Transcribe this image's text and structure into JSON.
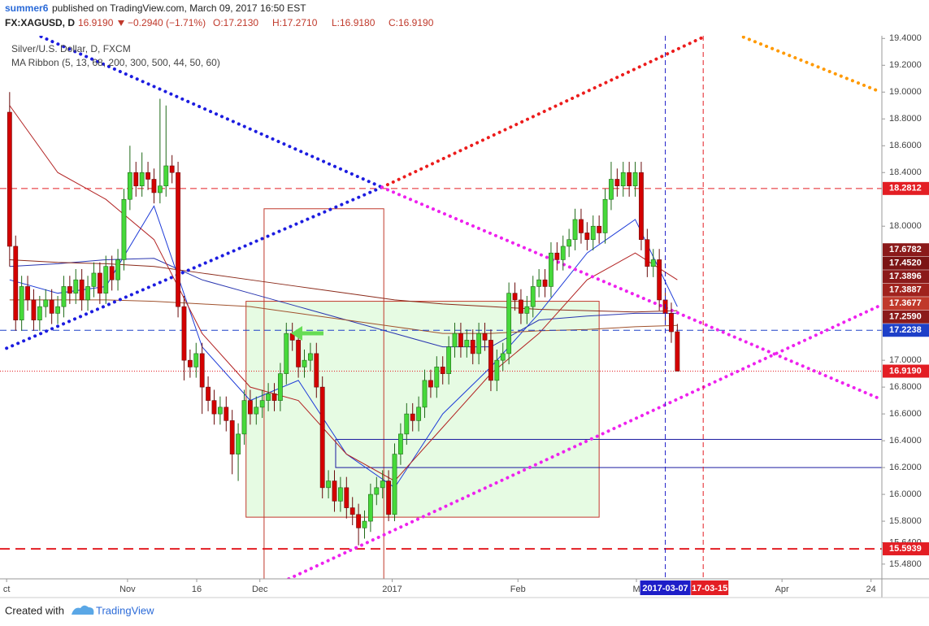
{
  "header": {
    "author": "summer6",
    "published": "published on TradingView.com, March 09, 2017 16:50 EST",
    "symbol": "FX:XAGUSD, D",
    "last": "16.9190",
    "change": "−0.2940 (−1.71%)",
    "open": "O:17.2130",
    "high": "H:17.2710",
    "low": "L:16.9180",
    "close": "C:16.9190"
  },
  "chart_data": {
    "type": "candlestick",
    "title": "Silver/U.S. Dollar, D, FXCM",
    "subtitle": "MA Ribbon (5, 13, 68, 200, 300, 500, 44, 50, 60)",
    "xlim": [
      -1.6,
      145
    ],
    "ylim": [
      15.37,
      19.42
    ],
    "xticks": [
      {
        "value": -0.5,
        "label": "ct"
      },
      {
        "value": 19.6,
        "label": "Nov"
      },
      {
        "value": 31.1,
        "label": "16"
      },
      {
        "value": 41.6,
        "label": "Dec"
      },
      {
        "value": 63.6,
        "label": "2017"
      },
      {
        "value": 84.5,
        "label": "Feb"
      },
      {
        "value": 104.2,
        "label": "M"
      },
      {
        "value": 128.4,
        "label": "Apr"
      },
      {
        "value": 143.2,
        "label": "24"
      }
    ],
    "yticks": [
      {
        "value": 19.4,
        "label": "19.4000"
      },
      {
        "value": 19.2,
        "label": "19.2000"
      },
      {
        "value": 19.0,
        "label": "19.0000"
      },
      {
        "value": 18.8,
        "label": "18.8000"
      },
      {
        "value": 18.6,
        "label": "18.6000"
      },
      {
        "value": 18.4,
        "label": "18.4000"
      },
      {
        "value": 18.0,
        "label": "18.0000"
      },
      {
        "value": 17.0,
        "label": "17.0000"
      },
      {
        "value": 16.8,
        "label": "16.8000"
      },
      {
        "value": 16.6,
        "label": "16.6000"
      },
      {
        "value": 16.4,
        "label": "16.4000"
      },
      {
        "value": 16.2,
        "label": "16.2000"
      },
      {
        "value": 16.0,
        "label": "16.0000"
      },
      {
        "value": 15.8,
        "label": "15.8000"
      },
      {
        "value": 15.64,
        "label": "15.6400"
      },
      {
        "value": 15.48,
        "label": "15.4800"
      }
    ],
    "up_color": "#46d93a",
    "down_color": "#d40000",
    "open": [
      18.85,
      17.85,
      17.3,
      17.55,
      17.45,
      17.3,
      17.4,
      17.45,
      17.35,
      17.4,
      17.55,
      17.5,
      17.6,
      17.45,
      17.55,
      17.65,
      17.5,
      17.7,
      17.6,
      17.75,
      18.2,
      18.4,
      18.3,
      18.4,
      18.35,
      18.25,
      18.3,
      18.45,
      18.4,
      17.4,
      17.0,
      16.95,
      17.05,
      16.8,
      16.7,
      16.6,
      16.65,
      16.55,
      16.3,
      16.45,
      16.7,
      16.6,
      16.65,
      16.7,
      16.75,
      16.7,
      16.9,
      17.2,
      17.15,
      16.95,
      17.0,
      17.05,
      16.8,
      16.05,
      16.1,
      15.95,
      16.05,
      15.9,
      15.85,
      15.75,
      15.8,
      16.0,
      16.05,
      16.1,
      15.85,
      16.3,
      16.45,
      16.6,
      16.55,
      16.65,
      16.85,
      16.8,
      16.95,
      16.9,
      17.1,
      17.2,
      17.1,
      17.15,
      17.05,
      17.2,
      17.15,
      16.85,
      17.0,
      17.05,
      17.5,
      17.45,
      17.35,
      17.4,
      17.55,
      17.6,
      17.55,
      17.8,
      17.75,
      17.85,
      17.9,
      18.05,
      17.95,
      17.9,
      18.0,
      17.95,
      18.2,
      18.35,
      18.3,
      18.4,
      18.3,
      18.4,
      17.9,
      17.7,
      17.75,
      17.45,
      17.35,
      17.213
    ],
    "high": [
      19.0,
      17.93,
      17.63,
      17.63,
      17.53,
      17.48,
      17.53,
      17.53,
      17.48,
      17.63,
      17.63,
      17.68,
      17.68,
      17.63,
      17.73,
      17.73,
      17.78,
      17.78,
      17.83,
      18.28,
      18.6,
      18.48,
      18.55,
      18.48,
      18.43,
      18.95,
      18.9,
      18.53,
      18.48,
      17.48,
      17.08,
      17.13,
      17.13,
      16.88,
      16.78,
      16.73,
      16.73,
      16.63,
      16.53,
      16.78,
      16.78,
      16.73,
      16.78,
      16.83,
      16.83,
      16.98,
      17.28,
      17.28,
      17.23,
      17.08,
      17.13,
      17.13,
      16.88,
      16.18,
      16.18,
      16.13,
      16.13,
      15.98,
      15.93,
      15.88,
      16.08,
      16.13,
      16.18,
      16.18,
      16.38,
      16.53,
      16.68,
      16.68,
      16.73,
      16.93,
      16.93,
      17.03,
      17.03,
      17.18,
      17.28,
      17.28,
      17.23,
      17.23,
      17.28,
      17.28,
      17.23,
      17.08,
      17.13,
      17.58,
      17.58,
      17.53,
      17.48,
      17.63,
      17.68,
      17.68,
      17.88,
      17.88,
      17.93,
      17.98,
      18.13,
      18.13,
      18.03,
      18.08,
      18.08,
      18.28,
      18.48,
      18.43,
      18.48,
      18.48,
      18.48,
      18.48,
      17.98,
      17.83,
      17.83,
      17.53,
      17.43,
      17.271
    ],
    "low": [
      17.7,
      17.22,
      17.22,
      17.37,
      17.22,
      17.22,
      17.32,
      17.27,
      17.27,
      17.32,
      17.42,
      17.42,
      17.37,
      17.37,
      17.47,
      17.42,
      17.42,
      17.52,
      17.52,
      17.67,
      18.12,
      18.22,
      18.22,
      18.27,
      18.17,
      18.17,
      18.22,
      18.32,
      17.32,
      16.85,
      16.87,
      16.87,
      16.6,
      16.62,
      16.52,
      16.52,
      16.47,
      16.15,
      16.1,
      16.37,
      16.52,
      16.52,
      16.57,
      16.62,
      16.62,
      16.62,
      16.82,
      17.07,
      16.87,
      16.87,
      16.92,
      16.72,
      15.97,
      15.97,
      15.87,
      15.87,
      15.82,
      15.77,
      15.62,
      15.67,
      15.72,
      15.92,
      15.97,
      15.8,
      15.8,
      16.22,
      16.37,
      16.47,
      16.47,
      16.57,
      16.72,
      16.72,
      16.82,
      16.82,
      17.02,
      17.02,
      17.02,
      16.97,
      16.97,
      17.07,
      16.77,
      16.77,
      16.92,
      16.97,
      17.37,
      17.27,
      17.27,
      17.32,
      17.47,
      17.47,
      17.47,
      17.67,
      17.67,
      17.77,
      17.82,
      17.87,
      17.82,
      17.82,
      17.87,
      17.87,
      18.12,
      18.22,
      18.22,
      18.22,
      18.22,
      17.82,
      17.62,
      17.62,
      17.37,
      17.27,
      17.13,
      16.918
    ],
    "close": [
      17.85,
      17.3,
      17.55,
      17.45,
      17.3,
      17.4,
      17.45,
      17.35,
      17.4,
      17.55,
      17.5,
      17.6,
      17.45,
      17.55,
      17.65,
      17.5,
      17.7,
      17.6,
      17.75,
      18.2,
      18.4,
      18.3,
      18.4,
      18.35,
      18.25,
      18.3,
      18.45,
      18.4,
      17.4,
      17.0,
      16.95,
      17.05,
      16.8,
      16.7,
      16.6,
      16.65,
      16.55,
      16.3,
      16.45,
      16.7,
      16.6,
      16.65,
      16.7,
      16.75,
      16.7,
      16.9,
      17.2,
      17.15,
      16.95,
      17.0,
      17.05,
      16.8,
      16.05,
      16.1,
      15.95,
      16.05,
      15.9,
      15.85,
      15.75,
      15.8,
      16.0,
      16.05,
      16.1,
      15.85,
      16.3,
      16.45,
      16.6,
      16.55,
      16.65,
      16.85,
      16.8,
      16.95,
      16.9,
      17.1,
      17.2,
      17.1,
      17.15,
      17.05,
      17.2,
      17.15,
      16.85,
      17.0,
      17.05,
      17.5,
      17.45,
      17.35,
      17.4,
      17.55,
      17.6,
      17.55,
      17.8,
      17.75,
      17.85,
      17.9,
      18.05,
      17.95,
      17.9,
      18.0,
      17.95,
      18.2,
      18.35,
      18.3,
      18.4,
      18.3,
      18.4,
      17.9,
      17.7,
      17.75,
      17.45,
      17.35,
      17.213,
      16.919
    ],
    "ma_x": [
      0,
      8,
      16,
      24,
      32,
      40,
      48,
      56,
      64,
      72,
      80,
      88,
      96,
      104,
      111
    ],
    "ma": [
      {
        "color": "#1e3cd8",
        "values": [
          17.6,
          17.5,
          17.55,
          18.15,
          17.1,
          16.7,
          16.85,
          16.3,
          16.05,
          16.6,
          16.95,
          17.35,
          17.8,
          18.05,
          17.4
        ]
      },
      {
        "color": "#2a36b0",
        "values": [
          17.7,
          17.72,
          17.75,
          17.76,
          17.6,
          17.5,
          17.4,
          17.3,
          17.2,
          17.1,
          17.1,
          17.3,
          17.33,
          17.35,
          17.35
        ]
      },
      {
        "color": "#b22222",
        "values": [
          18.9,
          18.4,
          18.2,
          17.9,
          17.2,
          16.8,
          16.7,
          16.3,
          16.1,
          16.5,
          16.9,
          17.2,
          17.6,
          17.8,
          17.6
        ]
      },
      {
        "color": "#8b2a1a",
        "values": [
          17.75,
          17.73,
          17.72,
          17.7,
          17.65,
          17.6,
          17.55,
          17.5,
          17.45,
          17.42,
          17.4,
          17.38,
          17.37,
          17.36,
          17.37
        ]
      },
      {
        "color": "#a0522d",
        "values": [
          17.45,
          17.45,
          17.45,
          17.44,
          17.42,
          17.4,
          17.35,
          17.3,
          17.25,
          17.2,
          17.2,
          17.22,
          17.23,
          17.25,
          17.26
        ]
      }
    ],
    "levels": [
      {
        "value": 18.2812,
        "color": "#e31e24",
        "line": "dashed"
      },
      {
        "value": 17.6782,
        "color": "#8b1a1a"
      },
      {
        "value": 17.452,
        "label": "17.4520",
        "color": "#7b1414"
      },
      {
        "value": 17.3896,
        "color": "#8b1a1a"
      },
      {
        "value": 17.3887,
        "color": "#a0221d"
      },
      {
        "value": 17.3677,
        "color": "#c0392b"
      },
      {
        "value": 17.259,
        "label": "17.2590",
        "color": "#8b1a1a"
      },
      {
        "value": 17.2238,
        "color": "#1e40c8",
        "line": "dashed"
      },
      {
        "value": 16.919,
        "label": "16.9190",
        "color": "#e31e24",
        "line": "dotted"
      },
      {
        "value": 15.5939,
        "color": "#e31e24",
        "line": "longdash"
      }
    ],
    "trendlines": [
      {
        "color": "#1c1ce0",
        "x": [
          -0.5,
          61.9
        ],
        "y": [
          17.09,
          18.29
        ]
      },
      {
        "color": "#1c1ce0",
        "x": [
          2.4,
          61.9
        ],
        "y": [
          19.47,
          18.29
        ]
      },
      {
        "color": "#ec1c1c",
        "x": [
          61.9,
          115.3
        ],
        "y": [
          18.29,
          19.41
        ]
      },
      {
        "color": "#ee22ee",
        "x": [
          61.9,
          144.3
        ],
        "y": [
          18.29,
          16.72
        ]
      },
      {
        "color": "#ee22ee",
        "x": [
          46.4,
          144.3
        ],
        "y": [
          15.37,
          17.4
        ]
      },
      {
        "color": "#ff9900",
        "x": [
          122,
          144.3
        ],
        "y": [
          19.41,
          19.01
        ]
      }
    ],
    "rects": [
      {
        "x": [
          39.3,
          98
        ],
        "y": [
          17.44,
          15.83
        ],
        "stroke": "#c0392b",
        "fill": "#e6fbe3"
      },
      {
        "x": [
          42.3,
          62.2
        ],
        "y": [
          18.13,
          15.3
        ],
        "stroke": "#c0392b",
        "fill": "none"
      },
      {
        "x": [
          54.2,
          145
        ],
        "y": [
          16.41,
          16.2
        ],
        "stroke": "#1a1aa0",
        "fill": "none"
      }
    ],
    "vlines": [
      {
        "x": 115.3,
        "color": "#e31e24",
        "label": "17-03-15"
      },
      {
        "x": 109,
        "color": "#1e1ec8",
        "label": "2017-03-07"
      }
    ]
  },
  "footer": {
    "created": "Created with",
    "brand": "TradingView"
  }
}
